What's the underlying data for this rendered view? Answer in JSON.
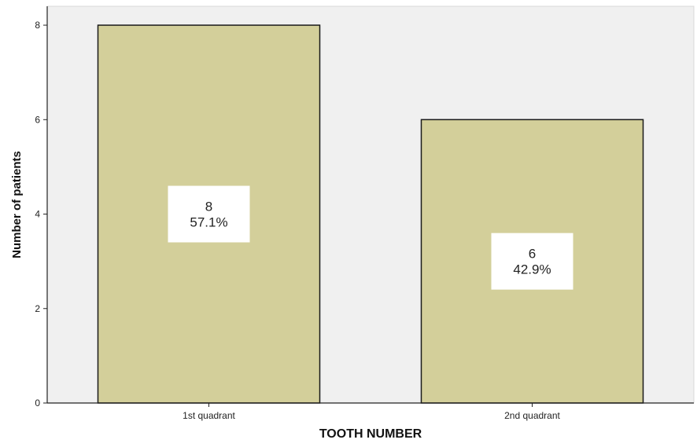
{
  "chart_data": {
    "type": "bar",
    "categories": [
      "1st quadrant",
      "2nd quadrant"
    ],
    "values": [
      8,
      6
    ],
    "data_labels": [
      {
        "count": "8",
        "percent": "57.1%"
      },
      {
        "count": "6",
        "percent": "42.9%"
      }
    ],
    "title": "",
    "xlabel": "TOOTH NUMBER",
    "ylabel": "Number of patients",
    "ylim": [
      0,
      8.4
    ],
    "yticks": [
      0,
      2,
      4,
      6,
      8
    ],
    "grid": false,
    "colors": {
      "bar_fill": "#d3cf9a",
      "bar_stroke": "#1a1a1a",
      "plot_background": "#f0f0f0"
    }
  }
}
